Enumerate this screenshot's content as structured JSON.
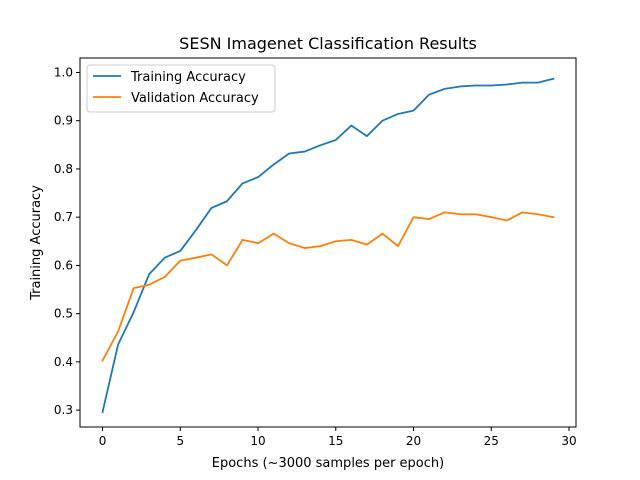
{
  "chart_data": {
    "type": "line",
    "title": "SESN Imagenet Classification Results",
    "xlabel": "Epochs (~3000 samples per epoch)",
    "ylabel": "Training Accuracy",
    "xlim": [
      -1.45,
      30.45
    ],
    "ylim": [
      0.265,
      1.03
    ],
    "xticks": [
      0,
      5,
      10,
      15,
      20,
      25,
      30
    ],
    "yticks": [
      0.3,
      0.4,
      0.5,
      0.6,
      0.7,
      0.8,
      0.9,
      1.0
    ],
    "xtick_labels": [
      "0",
      "5",
      "10",
      "15",
      "20",
      "25",
      "30"
    ],
    "ytick_labels": [
      "0.3",
      "0.4",
      "0.5",
      "0.6",
      "0.7",
      "0.8",
      "0.9",
      "1.0"
    ],
    "grid": false,
    "legend_position": "top-left",
    "x": [
      0,
      1,
      2,
      3,
      4,
      5,
      6,
      7,
      8,
      9,
      10,
      11,
      12,
      13,
      14,
      15,
      16,
      17,
      18,
      19,
      20,
      21,
      22,
      23,
      24,
      25,
      26,
      27,
      28,
      29
    ],
    "series": [
      {
        "name": "Training Accuracy",
        "color": "#1f77b4",
        "values": [
          0.296,
          0.436,
          0.503,
          0.582,
          0.616,
          0.63,
          0.673,
          0.719,
          0.733,
          0.77,
          0.783,
          0.809,
          0.832,
          0.836,
          0.849,
          0.86,
          0.89,
          0.868,
          0.9,
          0.914,
          0.921,
          0.954,
          0.966,
          0.971,
          0.973,
          0.973,
          0.975,
          0.979,
          0.979,
          0.987
        ]
      },
      {
        "name": "Validation Accuracy",
        "color": "#ff7f0e",
        "values": [
          0.403,
          0.463,
          0.553,
          0.56,
          0.576,
          0.61,
          0.616,
          0.623,
          0.6,
          0.653,
          0.646,
          0.666,
          0.646,
          0.636,
          0.64,
          0.65,
          0.653,
          0.643,
          0.666,
          0.64,
          0.7,
          0.696,
          0.71,
          0.706,
          0.706,
          0.7,
          0.693,
          0.71,
          0.706,
          0.7
        ]
      }
    ]
  }
}
